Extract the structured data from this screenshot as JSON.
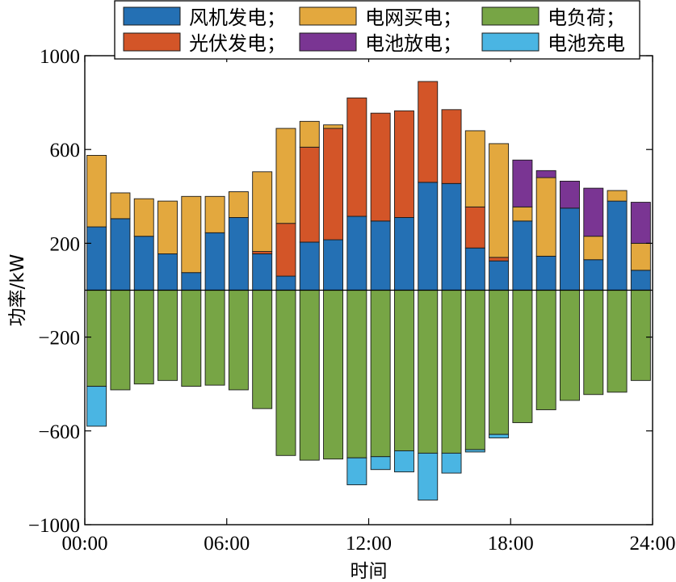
{
  "chart_data": {
    "type": "bar",
    "stacked": true,
    "xlabel": "时间",
    "ylabel": "功率/kW",
    "ylim": [
      -1000,
      1000
    ],
    "yticks": [
      -1000,
      -600,
      -200,
      200,
      600,
      1000
    ],
    "yticklabels": [
      "−1000",
      "−600",
      "−200",
      "200",
      "600",
      "1000"
    ],
    "xlim": [
      0,
      24
    ],
    "xticks": [
      0,
      6,
      12,
      18,
      24
    ],
    "xticklabels": [
      "00:00",
      "06:00",
      "12:00",
      "18:00",
      "24:00"
    ],
    "x": [
      1,
      2,
      3,
      4,
      5,
      6,
      7,
      8,
      9,
      10,
      11,
      12,
      13,
      14,
      15,
      16,
      17,
      18,
      19,
      20,
      21,
      22,
      23,
      24
    ],
    "grid": false,
    "legend_position": "top",
    "series": [
      {
        "name": "风机发电；",
        "color": "#2470b4",
        "values": [
          270,
          305,
          230,
          155,
          75,
          245,
          310,
          155,
          60,
          205,
          215,
          315,
          295,
          310,
          460,
          455,
          180,
          125,
          295,
          145,
          350,
          130,
          380,
          85
        ]
      },
      {
        "name": "光伏发电；",
        "color": "#d35528",
        "values": [
          0,
          0,
          0,
          0,
          0,
          0,
          0,
          10,
          225,
          405,
          475,
          505,
          460,
          455,
          430,
          315,
          175,
          15,
          0,
          0,
          0,
          0,
          0,
          0
        ]
      },
      {
        "name": "电网买电；",
        "color": "#e3a83e",
        "values": [
          305,
          110,
          160,
          225,
          325,
          155,
          110,
          340,
          405,
          110,
          15,
          0,
          0,
          0,
          0,
          0,
          325,
          485,
          60,
          335,
          0,
          100,
          45,
          115
        ]
      },
      {
        "name": "电池放电；",
        "color": "#7a3593",
        "values": [
          0,
          0,
          0,
          0,
          0,
          0,
          0,
          0,
          0,
          0,
          0,
          0,
          0,
          0,
          0,
          0,
          0,
          0,
          200,
          30,
          115,
          205,
          0,
          175
        ]
      },
      {
        "name": "电负荷；",
        "color": "#77a545",
        "values": [
          -410,
          -425,
          -400,
          -385,
          -410,
          -405,
          -425,
          -505,
          -705,
          -725,
          -720,
          -715,
          -710,
          -685,
          -695,
          -695,
          -680,
          -615,
          -565,
          -510,
          -470,
          -445,
          -435,
          -385
        ]
      },
      {
        "name": "电池充电",
        "color": "#4ab5e3",
        "values": [
          -170,
          0,
          0,
          0,
          0,
          0,
          0,
          0,
          0,
          0,
          0,
          -115,
          -55,
          -90,
          -200,
          -85,
          -10,
          -15,
          0,
          0,
          0,
          0,
          0,
          0
        ]
      }
    ],
    "legend_order": [
      "风机发电；",
      "电网买电；",
      "电负荷；",
      "光伏发电；",
      "电池放电；",
      "电池充电"
    ]
  }
}
